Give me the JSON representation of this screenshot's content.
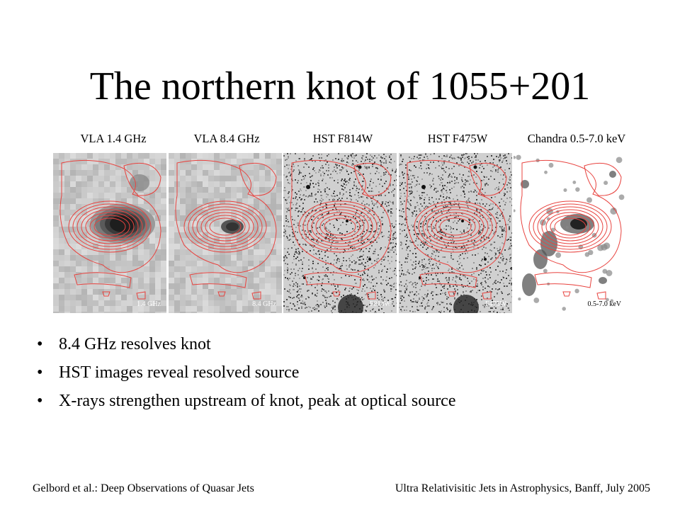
{
  "slide": {
    "title": "The northern knot of 1055+201"
  },
  "panels": [
    {
      "header": "VLA 1.4 GHz",
      "corner_label": "1.4 GHz",
      "style": "radio-low"
    },
    {
      "header": "VLA 8.4 GHz",
      "corner_label": "8.4 GHz",
      "style": "radio-high"
    },
    {
      "header": "HST F814W",
      "corner_label": "F814W",
      "style": "optical"
    },
    {
      "header": "HST F475W",
      "corner_label": "F475W",
      "style": "optical"
    },
    {
      "header": "Chandra 0.5-7.0 keV",
      "corner_label": "0.5-7.0 keV",
      "style": "xray"
    }
  ],
  "bullets": [
    {
      "marker": "•",
      "text": "8.4 GHz resolves knot"
    },
    {
      "marker": "•",
      "text": "HST images reveal resolved source"
    },
    {
      "marker": "•",
      "text": "X-rays strengthen upstream of knot, peak at optical source"
    }
  ],
  "footer": {
    "left": "Gelbord et al.: Deep Observations of Quasar Jets",
    "right": "Ultra Relativisitic Jets in Astrophysics, Banff, July 2005"
  },
  "colors": {
    "contour": "#e8433f",
    "radio_background": "#c8c8c8",
    "optical_background": "#d0d0d0",
    "xray_background": "#ffffff",
    "text": "#000000"
  }
}
